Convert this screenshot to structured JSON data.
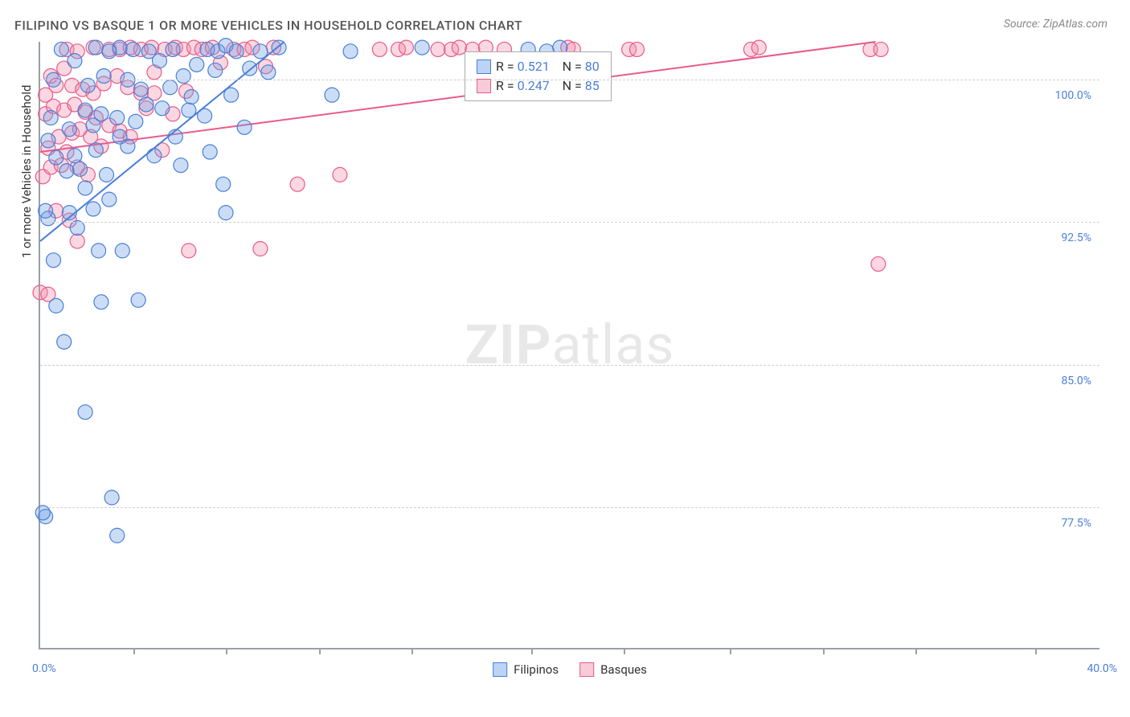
{
  "chart": {
    "type": "scatter",
    "title": "FILIPINO VS BASQUE 1 OR MORE VEHICLES IN HOUSEHOLD CORRELATION CHART",
    "source": "Source: ZipAtlas.com",
    "watermark_bold": "ZIP",
    "watermark_light": "atlas",
    "y_axis_title": "1 or more Vehicles in Household",
    "xlim": [
      0,
      40
    ],
    "ylim": [
      70,
      102
    ],
    "y_ticks": [
      77.5,
      85.0,
      92.5,
      100.0
    ],
    "y_tick_labels": [
      "77.5%",
      "85.0%",
      "92.5%",
      "100.0%"
    ],
    "x_ticks": [
      3.5,
      7.0,
      10.5,
      14.0,
      18.5,
      22.0,
      26.0,
      29.5,
      33.0,
      37.5
    ],
    "x_label_min": "0.0%",
    "x_label_max": "40.0%",
    "background_color": "#ffffff",
    "grid_color": "#d0d0d0",
    "marker_radius": 9,
    "marker_stroke_width": 1.2,
    "line_width": 2,
    "series": {
      "filipinos": {
        "label": "Filipinos",
        "color_fill": "rgba(106,158,230,0.35)",
        "color_stroke": "#4a7fd8",
        "R": "0.521",
        "N": "80",
        "trend": {
          "x1": 0,
          "y1": 91.5,
          "x2": 9.2,
          "y2": 102
        },
        "points": [
          [
            0.2,
            77.0
          ],
          [
            0.1,
            77.2
          ],
          [
            2.7,
            78.0
          ],
          [
            2.9,
            76.0
          ],
          [
            1.7,
            82.5
          ],
          [
            0.9,
            86.2
          ],
          [
            3.7,
            88.4
          ],
          [
            2.3,
            88.3
          ],
          [
            0.6,
            88.1
          ],
          [
            3.1,
            91.0
          ],
          [
            2.2,
            91.0
          ],
          [
            0.5,
            90.5
          ],
          [
            0.3,
            92.7
          ],
          [
            0.2,
            93.1
          ],
          [
            1.1,
            93.0
          ],
          [
            1.4,
            92.2
          ],
          [
            2.0,
            93.2
          ],
          [
            1.0,
            95.2
          ],
          [
            0.6,
            95.9
          ],
          [
            0.3,
            96.8
          ],
          [
            1.3,
            96.0
          ],
          [
            1.5,
            95.3
          ],
          [
            1.7,
            94.3
          ],
          [
            2.1,
            96.3
          ],
          [
            2.6,
            93.7
          ],
          [
            2.5,
            95.0
          ],
          [
            3.3,
            96.5
          ],
          [
            3.0,
            97.0
          ],
          [
            2.0,
            97.6
          ],
          [
            1.1,
            97.4
          ],
          [
            0.4,
            98.0
          ],
          [
            1.7,
            98.4
          ],
          [
            2.3,
            98.2
          ],
          [
            2.9,
            98.0
          ],
          [
            3.6,
            97.8
          ],
          [
            4.3,
            96.0
          ],
          [
            5.1,
            97.0
          ],
          [
            4.0,
            98.7
          ],
          [
            4.6,
            98.5
          ],
          [
            5.3,
            95.5
          ],
          [
            5.6,
            98.4
          ],
          [
            6.2,
            98.1
          ],
          [
            6.9,
            94.5
          ],
          [
            6.4,
            96.2
          ],
          [
            7.2,
            99.2
          ],
          [
            7.7,
            97.5
          ],
          [
            7.0,
            93.0
          ],
          [
            3.8,
            99.5
          ],
          [
            4.9,
            99.6
          ],
          [
            5.7,
            99.1
          ],
          [
            6.3,
            101.6
          ],
          [
            6.7,
            101.5
          ],
          [
            7.0,
            101.8
          ],
          [
            7.4,
            101.5
          ],
          [
            7.9,
            100.6
          ],
          [
            8.3,
            101.5
          ],
          [
            8.6,
            100.4
          ],
          [
            9.0,
            101.7
          ],
          [
            0.8,
            101.6
          ],
          [
            1.3,
            101.0
          ],
          [
            1.8,
            99.7
          ],
          [
            2.4,
            100.2
          ],
          [
            3.0,
            101.7
          ],
          [
            3.3,
            100.0
          ],
          [
            4.1,
            101.5
          ],
          [
            4.5,
            101.0
          ],
          [
            5.0,
            101.6
          ],
          [
            5.4,
            100.2
          ],
          [
            11.7,
            101.5
          ],
          [
            14.4,
            101.7
          ],
          [
            18.4,
            101.6
          ],
          [
            19.1,
            101.5
          ],
          [
            19.6,
            101.7
          ],
          [
            11.0,
            99.2
          ],
          [
            2.1,
            101.7
          ],
          [
            2.6,
            101.5
          ],
          [
            5.9,
            100.8
          ],
          [
            6.6,
            100.5
          ],
          [
            3.5,
            101.6
          ],
          [
            0.5,
            100.0
          ]
        ]
      },
      "basques": {
        "label": "Basques",
        "color_fill": "rgba(240,140,170,0.35)",
        "color_stroke": "#e85b8a",
        "R": "0.247",
        "N": "85",
        "trend": {
          "x1": 0,
          "y1": 96.2,
          "x2": 31.5,
          "y2": 102
        },
        "points": [
          [
            0.0,
            88.8
          ],
          [
            0.3,
            88.7
          ],
          [
            1.4,
            91.5
          ],
          [
            0.6,
            93.1
          ],
          [
            1.1,
            92.6
          ],
          [
            0.1,
            94.9
          ],
          [
            0.4,
            95.4
          ],
          [
            0.8,
            95.5
          ],
          [
            1.0,
            96.2
          ],
          [
            1.4,
            95.4
          ],
          [
            1.8,
            95.0
          ],
          [
            0.3,
            96.4
          ],
          [
            0.7,
            97.0
          ],
          [
            1.2,
            97.2
          ],
          [
            1.5,
            97.4
          ],
          [
            1.9,
            97.0
          ],
          [
            2.3,
            96.5
          ],
          [
            0.2,
            98.2
          ],
          [
            0.5,
            98.6
          ],
          [
            0.9,
            98.4
          ],
          [
            1.3,
            98.7
          ],
          [
            1.7,
            98.3
          ],
          [
            2.1,
            98.0
          ],
          [
            2.6,
            97.6
          ],
          [
            3.0,
            97.3
          ],
          [
            5.6,
            91.0
          ],
          [
            3.4,
            97.0
          ],
          [
            4.0,
            98.5
          ],
          [
            4.6,
            96.3
          ],
          [
            4.3,
            99.3
          ],
          [
            5.0,
            98.2
          ],
          [
            5.5,
            99.4
          ],
          [
            8.3,
            91.1
          ],
          [
            9.7,
            94.5
          ],
          [
            11.3,
            95.0
          ],
          [
            2.6,
            101.6
          ],
          [
            3.0,
            101.6
          ],
          [
            3.4,
            101.7
          ],
          [
            3.8,
            101.6
          ],
          [
            4.2,
            101.7
          ],
          [
            4.7,
            101.6
          ],
          [
            5.1,
            101.7
          ],
          [
            5.4,
            101.6
          ],
          [
            5.8,
            101.7
          ],
          [
            6.1,
            101.6
          ],
          [
            6.5,
            101.7
          ],
          [
            6.8,
            100.9
          ],
          [
            7.3,
            101.6
          ],
          [
            7.7,
            101.6
          ],
          [
            8.0,
            101.7
          ],
          [
            8.5,
            100.7
          ],
          [
            8.8,
            101.7
          ],
          [
            12.8,
            101.6
          ],
          [
            13.5,
            101.6
          ],
          [
            13.8,
            101.7
          ],
          [
            15.0,
            101.6
          ],
          [
            15.5,
            101.6
          ],
          [
            15.8,
            101.7
          ],
          [
            16.3,
            101.6
          ],
          [
            16.8,
            101.7
          ],
          [
            17.5,
            101.6
          ],
          [
            19.9,
            101.7
          ],
          [
            20.1,
            101.6
          ],
          [
            22.2,
            101.6
          ],
          [
            22.5,
            101.6
          ],
          [
            26.8,
            101.6
          ],
          [
            27.1,
            101.7
          ],
          [
            31.3,
            101.6
          ],
          [
            31.7,
            101.6
          ],
          [
            31.6,
            90.3
          ],
          [
            1.2,
            99.7
          ],
          [
            1.6,
            99.5
          ],
          [
            2.0,
            99.3
          ],
          [
            2.4,
            99.8
          ],
          [
            2.9,
            100.2
          ],
          [
            3.3,
            99.6
          ],
          [
            3.8,
            99.3
          ],
          [
            4.3,
            100.4
          ],
          [
            0.9,
            100.6
          ],
          [
            0.4,
            100.2
          ],
          [
            0.2,
            99.2
          ],
          [
            0.6,
            99.7
          ],
          [
            1.0,
            101.6
          ],
          [
            1.4,
            101.5
          ],
          [
            2.0,
            101.7
          ]
        ]
      }
    },
    "legend_labels": {
      "R_prefix": "R  =  ",
      "N_prefix": "N  =  "
    }
  }
}
